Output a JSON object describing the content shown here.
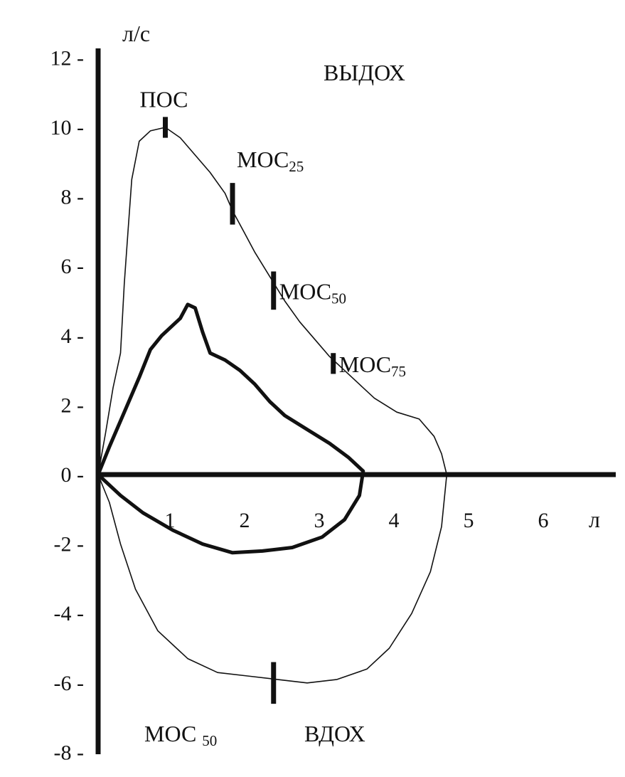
{
  "chart_data": {
    "type": "line",
    "ylabel": "л/с",
    "xlabel": "л",
    "xlim": [
      0,
      6.5
    ],
    "ylim": [
      -8,
      12
    ],
    "x_ticks": [
      {
        "value": 1,
        "label": "1"
      },
      {
        "value": 2,
        "label": "2"
      },
      {
        "value": 3,
        "label": "3"
      },
      {
        "value": 4,
        "label": "4"
      },
      {
        "value": 5,
        "label": "5"
      },
      {
        "value": 6,
        "label": "6"
      }
    ],
    "y_ticks": [
      {
        "value": 12,
        "label": "12 -"
      },
      {
        "value": 10,
        "label": "10 -"
      },
      {
        "value": 8,
        "label": "8 -"
      },
      {
        "value": 6,
        "label": "6 -"
      },
      {
        "value": 4,
        "label": "4 -"
      },
      {
        "value": 2,
        "label": "2 -"
      },
      {
        "value": 0,
        "label": "0 -"
      },
      {
        "value": -2,
        "label": "-2 -"
      },
      {
        "value": -4,
        "label": "-4 -"
      },
      {
        "value": -6,
        "label": "-6 -"
      },
      {
        "value": -8,
        "label": "-8 -"
      }
    ],
    "region_labels": {
      "expiration": "ВЫДОХ",
      "inspiration": "ВДОХ"
    },
    "series": [
      {
        "style": "thin",
        "points": [
          [
            0,
            0
          ],
          [
            0.1,
            1.2
          ],
          [
            0.2,
            2.5
          ],
          [
            0.3,
            3.5
          ],
          [
            0.35,
            5.5
          ],
          [
            0.4,
            7
          ],
          [
            0.45,
            8.5
          ],
          [
            0.55,
            9.6
          ],
          [
            0.7,
            9.9
          ],
          [
            0.9,
            10
          ],
          [
            1.1,
            9.7
          ],
          [
            1.3,
            9.2
          ],
          [
            1.5,
            8.7
          ],
          [
            1.7,
            8.1
          ],
          [
            1.8,
            7.6
          ],
          [
            1.95,
            7
          ],
          [
            2.1,
            6.4
          ],
          [
            2.3,
            5.7
          ],
          [
            2.5,
            5
          ],
          [
            2.7,
            4.4
          ],
          [
            2.9,
            3.9
          ],
          [
            3.1,
            3.4
          ],
          [
            3.3,
            3
          ],
          [
            3.5,
            2.6
          ],
          [
            3.7,
            2.2
          ],
          [
            4.0,
            1.8
          ],
          [
            4.3,
            1.6
          ],
          [
            4.5,
            1.1
          ],
          [
            4.6,
            0.6
          ],
          [
            4.67,
            0
          ],
          [
            4.6,
            -1.5
          ],
          [
            4.45,
            -2.8
          ],
          [
            4.2,
            -4
          ],
          [
            3.9,
            -5
          ],
          [
            3.6,
            -5.6
          ],
          [
            3.2,
            -5.9
          ],
          [
            2.8,
            -6
          ],
          [
            2.4,
            -5.9
          ],
          [
            2.0,
            -5.8
          ],
          [
            1.6,
            -5.7
          ],
          [
            1.2,
            -5.3
          ],
          [
            0.8,
            -4.5
          ],
          [
            0.5,
            -3.3
          ],
          [
            0.3,
            -2
          ],
          [
            0.15,
            -0.8
          ],
          [
            0,
            0
          ]
        ]
      },
      {
        "style": "thick",
        "points": [
          [
            0,
            0
          ],
          [
            0.15,
            0.8
          ],
          [
            0.35,
            1.8
          ],
          [
            0.55,
            2.8
          ],
          [
            0.7,
            3.6
          ],
          [
            0.85,
            4.0
          ],
          [
            1.0,
            4.3
          ],
          [
            1.1,
            4.5
          ],
          [
            1.2,
            4.9
          ],
          [
            1.3,
            4.8
          ],
          [
            1.4,
            4.1
          ],
          [
            1.5,
            3.5
          ],
          [
            1.7,
            3.3
          ],
          [
            1.9,
            3.0
          ],
          [
            2.1,
            2.6
          ],
          [
            2.3,
            2.1
          ],
          [
            2.5,
            1.7
          ],
          [
            2.8,
            1.3
          ],
          [
            3.1,
            0.9
          ],
          [
            3.35,
            0.5
          ],
          [
            3.55,
            0.1
          ],
          [
            3.5,
            -0.6
          ],
          [
            3.3,
            -1.3
          ],
          [
            3.0,
            -1.8
          ],
          [
            2.6,
            -2.1
          ],
          [
            2.2,
            -2.2
          ],
          [
            1.8,
            -2.25
          ],
          [
            1.4,
            -2.0
          ],
          [
            1.0,
            -1.6
          ],
          [
            0.6,
            -1.1
          ],
          [
            0.3,
            -0.6
          ],
          [
            0,
            0
          ]
        ]
      }
    ],
    "markers": [
      {
        "x": 0.9,
        "y": 10.0,
        "half_height": 0.3,
        "label": "ПОС",
        "sub": "",
        "label_pos": "above"
      },
      {
        "x": 1.8,
        "y": 7.8,
        "half_height": 0.6,
        "label": "МОС",
        "sub": "25",
        "label_pos": "above-right"
      },
      {
        "x": 2.35,
        "y": 5.3,
        "half_height": 0.55,
        "label": "МОС",
        "sub": "50",
        "label_pos": "right"
      },
      {
        "x": 3.15,
        "y": 3.2,
        "half_height": 0.3,
        "label": "МОС",
        "sub": "75",
        "label_pos": "right"
      },
      {
        "x": 2.35,
        "y": -6.0,
        "half_height": 0.6,
        "label": "",
        "sub": "",
        "label_pos": "none"
      }
    ],
    "bottom_label": {
      "text": "МОС ",
      "sub": "50"
    }
  }
}
